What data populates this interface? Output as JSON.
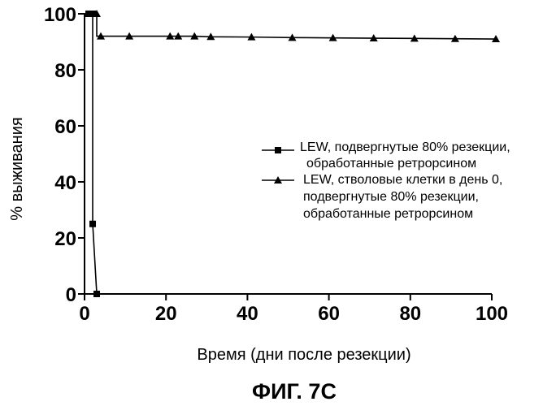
{
  "chart_data": {
    "type": "line",
    "xlabel": "Время (дни после резекции)",
    "ylabel": "% выживания",
    "caption": "ФИГ. 7С",
    "xlim": [
      0,
      100
    ],
    "ylim": [
      0,
      100
    ],
    "xticks": [
      "0",
      "20",
      "40",
      "60",
      "80",
      "100"
    ],
    "yticks": [
      "0",
      "20",
      "40",
      "60",
      "80",
      "100"
    ],
    "legend_position": "center-right",
    "series": [
      {
        "marker": "square",
        "label_lines": [
          "LEW, подвергнутые 80% резекции,",
          "обработанные ретрорсином"
        ],
        "x": [
          0,
          1,
          2,
          2,
          2,
          3,
          3
        ],
        "y": [
          100,
          100,
          100,
          25,
          25,
          0,
          0
        ],
        "marker_points": [
          [
            1,
            100
          ],
          [
            2,
            100
          ],
          [
            2,
            25
          ],
          [
            3,
            0
          ]
        ]
      },
      {
        "marker": "triangle",
        "label_lines": [
          "LEW, стволовые клетки в день 0,",
          "подвергнутые 80% резекции,",
          "обработанные ретрорсином"
        ],
        "x": [
          0,
          3,
          3,
          11,
          21,
          23,
          27,
          31,
          41,
          51,
          61,
          71,
          81,
          91,
          101
        ],
        "y": [
          100,
          100,
          92,
          92,
          92,
          92,
          92,
          91.8,
          91.7,
          91.5,
          91.4,
          91.3,
          91.2,
          91.1,
          91
        ],
        "marker_points": [
          [
            3,
            100
          ],
          [
            4,
            92
          ],
          [
            11,
            92
          ],
          [
            21,
            92
          ],
          [
            23,
            92
          ],
          [
            27,
            92
          ],
          [
            31,
            91.8
          ],
          [
            41,
            91.7
          ],
          [
            51,
            91.5
          ],
          [
            61,
            91.4
          ],
          [
            71,
            91.3
          ],
          [
            81,
            91.2
          ],
          [
            91,
            91.1
          ],
          [
            101,
            91
          ]
        ]
      }
    ]
  }
}
